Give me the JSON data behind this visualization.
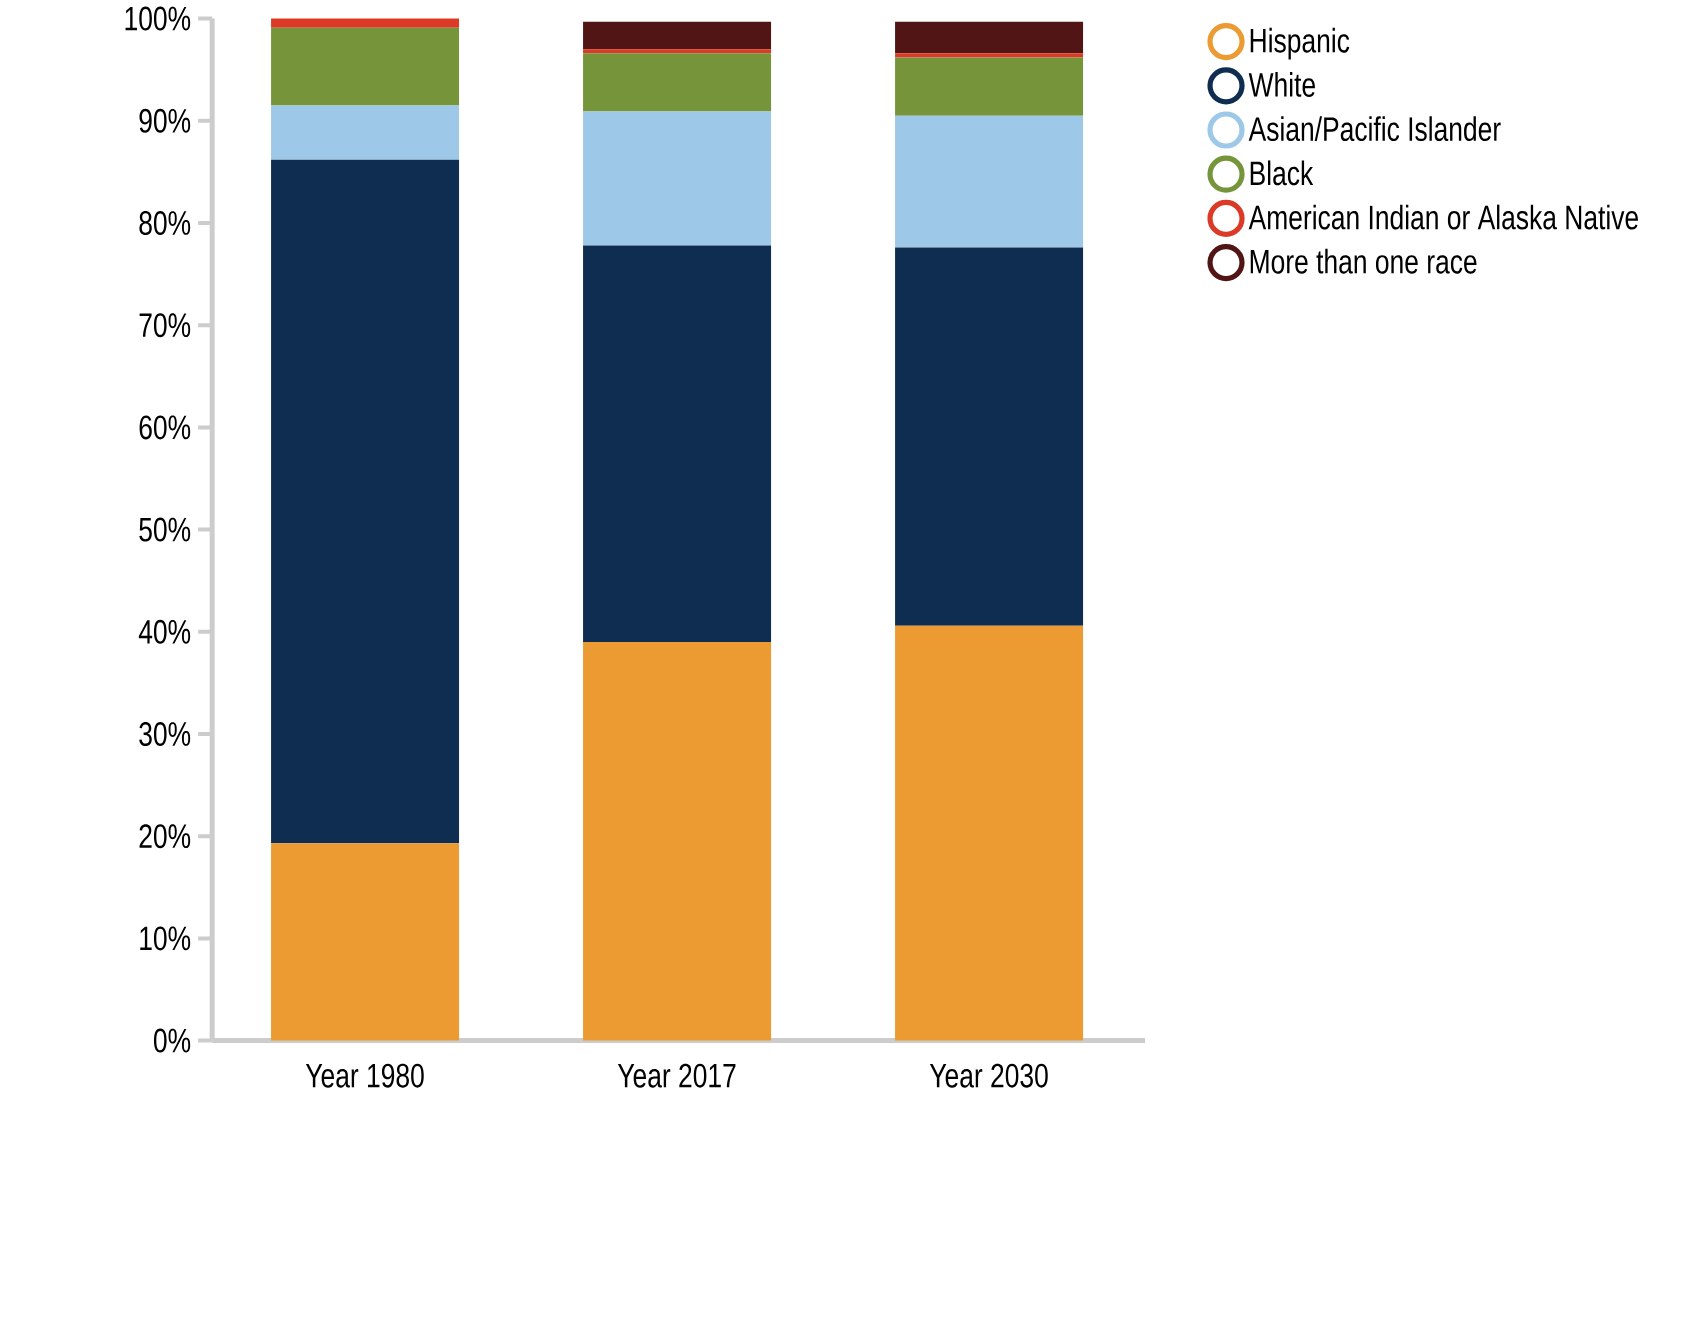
{
  "chart_data": {
    "type": "bar",
    "stacked": true,
    "categories": [
      "Year 1980",
      "Year 2017",
      "Year 2030"
    ],
    "series": [
      {
        "name": "Hispanic",
        "color": "#eb9b32",
        "values": [
          19.3,
          39.0,
          40.6
        ]
      },
      {
        "name": "White",
        "color": "#0f2d50",
        "values": [
          66.9,
          38.8,
          37.0
        ]
      },
      {
        "name": "Asian/Pacific Islander",
        "color": "#9dc8e8",
        "values": [
          5.3,
          13.1,
          12.9
        ]
      },
      {
        "name": "Black",
        "color": "#76953b",
        "values": [
          7.6,
          5.7,
          5.7
        ]
      },
      {
        "name": "American Indian or Alaska Native",
        "color": "#db3a27",
        "values": [
          0.9,
          0.4,
          0.4
        ]
      },
      {
        "name": "More than one race",
        "color": "#521516",
        "values": [
          0,
          2.7,
          3.1
        ]
      }
    ],
    "ylim": [
      0,
      100
    ],
    "yticks": [
      {
        "value": 0,
        "label": "0%"
      },
      {
        "value": 10,
        "label": "10%"
      },
      {
        "value": 20,
        "label": "20%"
      },
      {
        "value": 30,
        "label": "30%"
      },
      {
        "value": 40,
        "label": "40%"
      },
      {
        "value": 50,
        "label": "50%"
      },
      {
        "value": 60,
        "label": "60%"
      },
      {
        "value": 70,
        "label": "70%"
      },
      {
        "value": 80,
        "label": "80%"
      },
      {
        "value": 90,
        "label": "90%"
      },
      {
        "value": 100,
        "label": "100%"
      }
    ],
    "grid": false,
    "legend": "right"
  }
}
